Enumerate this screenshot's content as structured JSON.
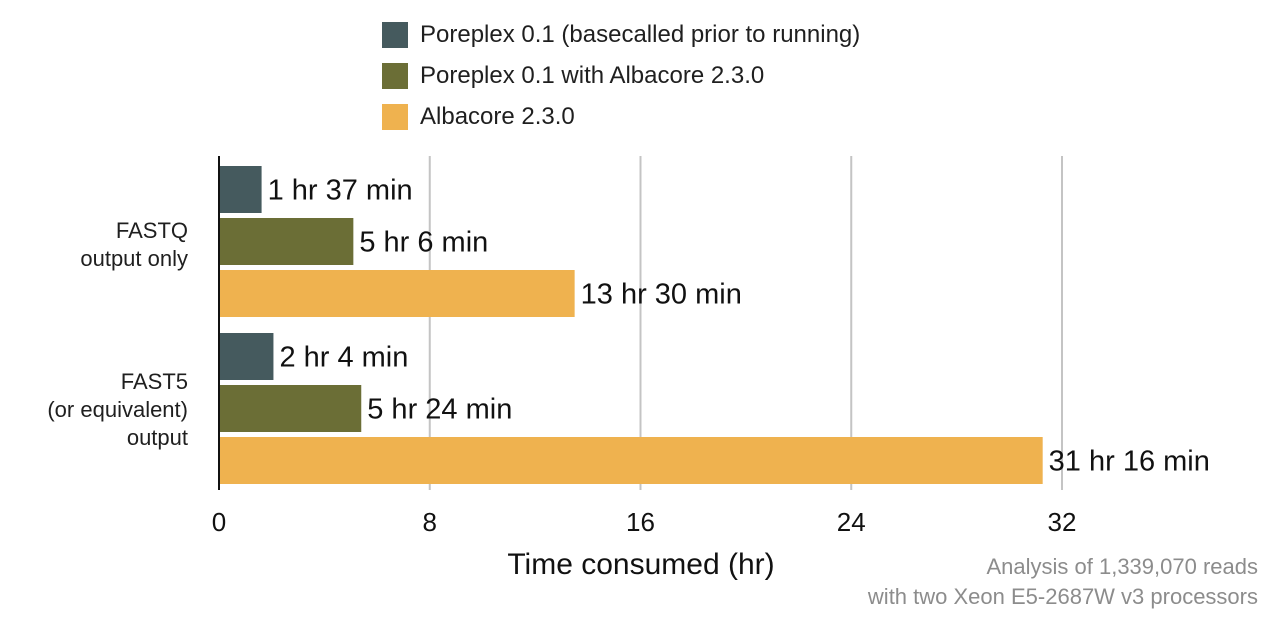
{
  "chart_data": {
    "type": "bar",
    "orientation": "horizontal",
    "categories": [
      "FASTQ\noutput only",
      "FAST5\n(or equivalent)\noutput"
    ],
    "series": [
      {
        "name": "Poreplex 0.1 (basecalled prior to running)",
        "color": "#455a5e",
        "values": [
          1.6167,
          2.0667
        ],
        "labels": [
          "1 hr 37 min",
          "2 hr 4 min"
        ]
      },
      {
        "name": "Poreplex 0.1 with Albacore 2.3.0",
        "color": "#6b6e36",
        "values": [
          5.1,
          5.4
        ],
        "labels": [
          "5 hr 6 min",
          "5 hr 24 min"
        ]
      },
      {
        "name": "Albacore 2.3.0",
        "color": "#efb24f",
        "values": [
          13.5,
          31.2667
        ],
        "labels": [
          "13 hr 30 min",
          "31 hr 16 min"
        ]
      }
    ],
    "xlabel": "Time consumed (hr)",
    "xlim": [
      0,
      32
    ],
    "xticks": [
      0,
      8,
      16,
      24,
      32
    ],
    "grid": "vertical",
    "legend": "top"
  },
  "note": {
    "line1": "Analysis of 1,339,070 reads",
    "line2": "with two Xeon E5-2687W v3 processors"
  }
}
